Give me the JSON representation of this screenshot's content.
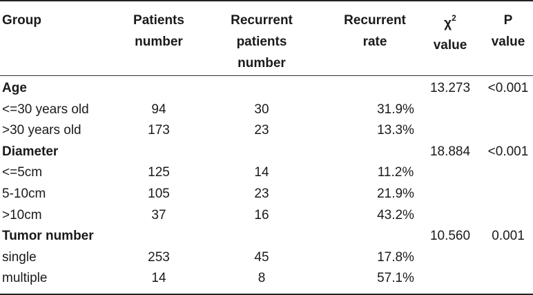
{
  "headers": {
    "group": "Group",
    "patients": [
      "Patients",
      "number"
    ],
    "recurrent_patients": [
      "Recurrent",
      "patients",
      "number"
    ],
    "recurrent_rate": [
      "Recurrent",
      "rate"
    ],
    "chi_value": [
      "χ",
      "2",
      "value"
    ],
    "p_value": [
      "P",
      "value"
    ]
  },
  "rows": [
    {
      "label": "Age",
      "bold": true,
      "patients": "",
      "recurrent": "",
      "rate": "",
      "chi": "13.273",
      "p": "<0.001"
    },
    {
      "label": "<=30 years old",
      "bold": false,
      "patients": "94",
      "recurrent": "30",
      "rate": "31.9%",
      "chi": "",
      "p": ""
    },
    {
      "label": ">30 years old",
      "bold": false,
      "patients": "173",
      "recurrent": "23",
      "rate": "13.3%",
      "chi": "",
      "p": ""
    },
    {
      "label": "Diameter",
      "bold": true,
      "patients": "",
      "recurrent": "",
      "rate": "",
      "chi": "18.884",
      "p": "<0.001"
    },
    {
      "label": "<=5cm",
      "bold": false,
      "patients": "125",
      "recurrent": "14",
      "rate": "11.2%",
      "chi": "",
      "p": ""
    },
    {
      "label": "5-10cm",
      "bold": false,
      "patients": "105",
      "recurrent": "23",
      "rate": "21.9%",
      "chi": "",
      "p": ""
    },
    {
      "label": ">10cm",
      "bold": false,
      "patients": "37",
      "recurrent": "16",
      "rate": "43.2%",
      "chi": "",
      "p": ""
    },
    {
      "label": "Tumor number",
      "bold": true,
      "patients": "",
      "recurrent": "",
      "rate": "",
      "chi": "10.560",
      "p": "0.001"
    },
    {
      "label": "single",
      "bold": false,
      "patients": "253",
      "recurrent": "45",
      "rate": "17.8%",
      "chi": "",
      "p": ""
    },
    {
      "label": "multiple",
      "bold": false,
      "patients": "14",
      "recurrent": "8",
      "rate": "57.1%",
      "chi": "",
      "p": ""
    }
  ]
}
